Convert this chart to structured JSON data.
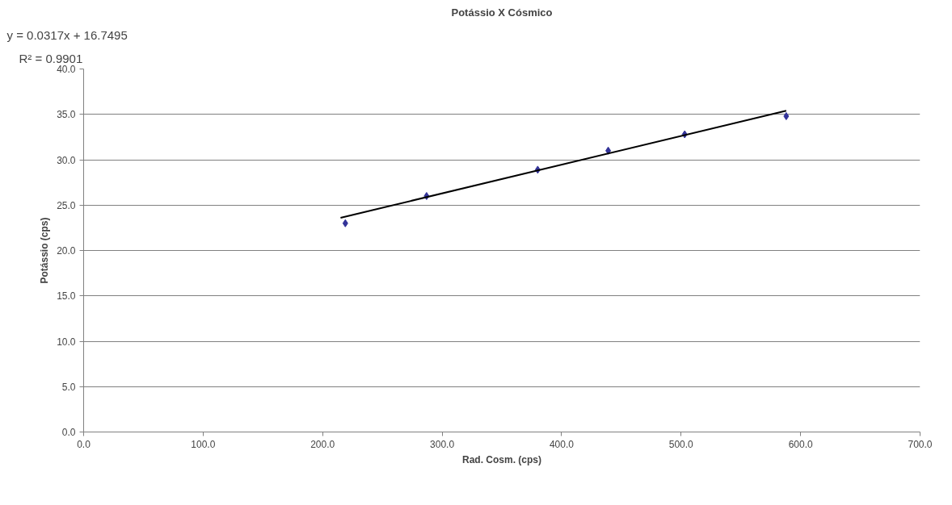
{
  "chart_data": {
    "type": "scatter",
    "title": "Potássio X Cósmico",
    "xlabel": "Rad. Cosm. (cps)",
    "ylabel": "Potássio (cps)",
    "annotations": [
      "y = 0.0317x + 16.7495",
      "R² = 0.9901"
    ],
    "series": [
      {
        "color": "#333399",
        "marker": "diamond",
        "x": [
          219,
          287,
          380,
          439,
          503,
          588
        ],
        "values": [
          23.0,
          26.0,
          28.9,
          31.0,
          32.8,
          34.8
        ]
      },
      {
        "type": "line",
        "color": "#000000",
        "x": [
          215,
          588
        ],
        "values": [
          23.6,
          35.4
        ]
      }
    ],
    "xlim": [
      0,
      700
    ],
    "ylim": [
      0,
      40
    ],
    "xticks": [
      {
        "value": 0,
        "label": "0.0"
      },
      {
        "value": 100,
        "label": "100.0"
      },
      {
        "value": 200,
        "label": "200.0"
      },
      {
        "value": 300,
        "label": "300.0"
      },
      {
        "value": 400,
        "label": "400.0"
      },
      {
        "value": 500,
        "label": "500.0"
      },
      {
        "value": 600,
        "label": "600.0"
      },
      {
        "value": 700,
        "label": "700.0"
      }
    ],
    "yticks": [
      {
        "value": 0,
        "label": "0.0"
      },
      {
        "value": 5,
        "label": "5.0"
      },
      {
        "value": 10,
        "label": "10.0"
      },
      {
        "value": 15,
        "label": "15.0"
      },
      {
        "value": 20,
        "label": "20.0"
      },
      {
        "value": 25,
        "label": "25.0"
      },
      {
        "value": 30,
        "label": "30.0"
      },
      {
        "value": 35,
        "label": "35.0"
      },
      {
        "value": 40,
        "label": "40.0"
      }
    ],
    "grid": "y"
  }
}
